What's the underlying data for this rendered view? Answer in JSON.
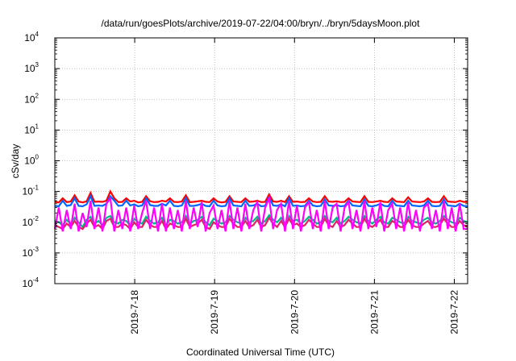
{
  "title": "/data/run/goesPlots/archive/2019-07-22/04:00/bryn/../bryn/5daysMoon.plot",
  "chart_data": {
    "type": "line",
    "title": "/data/run/goesPlots/archive/2019-07-22/04:00/bryn/../bryn/5daysMoon.plot",
    "xlabel": "Coordinated Universal Time (UTC)",
    "ylabel": "cSv/day",
    "yscale": "log",
    "ylim": [
      0.0001,
      10000
    ],
    "xlim": [
      "2019-07-17 00:00",
      "2019-07-22 04:00"
    ],
    "grid": true,
    "legend": "none",
    "y_ticks": [
      {
        "base": "10",
        "exp": "-4"
      },
      {
        "base": "10",
        "exp": "-3"
      },
      {
        "base": "10",
        "exp": "-2"
      },
      {
        "base": "10",
        "exp": "-1"
      },
      {
        "base": "10",
        "exp": "0"
      },
      {
        "base": "10",
        "exp": "1"
      },
      {
        "base": "10",
        "exp": "2"
      },
      {
        "base": "10",
        "exp": "3"
      },
      {
        "base": "10",
        "exp": "4"
      }
    ],
    "x_ticks": [
      "2019-7-18",
      "2019-7-19",
      "2019-7-20",
      "2019-7-21",
      "2019-7-22"
    ],
    "series": [
      {
        "color": "#ff0000",
        "values": [
          0.046,
          0.044,
          0.06,
          0.045,
          0.047,
          0.075,
          0.047,
          0.044,
          0.048,
          0.09,
          0.046,
          0.047,
          0.046,
          0.05,
          0.1,
          0.06,
          0.045,
          0.046,
          0.06,
          0.047,
          0.05,
          0.044,
          0.046,
          0.07,
          0.048,
          0.045,
          0.046,
          0.05,
          0.047,
          0.06,
          0.046,
          0.045,
          0.047,
          0.075,
          0.045,
          0.046,
          0.048,
          0.05,
          0.046,
          0.045,
          0.06,
          0.047,
          0.044,
          0.046,
          0.07,
          0.047,
          0.046,
          0.045,
          0.06,
          0.046,
          0.047,
          0.05,
          0.045,
          0.046,
          0.08,
          0.047,
          0.046,
          0.05,
          0.045,
          0.07,
          0.046,
          0.047,
          0.045,
          0.046,
          0.06,
          0.047,
          0.045,
          0.046,
          0.07,
          0.047,
          0.046,
          0.048,
          0.045,
          0.046,
          0.06,
          0.047,
          0.046,
          0.045,
          0.07,
          0.046,
          0.045,
          0.047,
          0.05,
          0.046,
          0.045,
          0.06,
          0.047,
          0.046,
          0.045,
          0.065,
          0.047,
          0.046,
          0.045,
          0.047,
          0.06,
          0.046,
          0.045,
          0.046,
          0.07,
          0.047,
          0.046,
          0.045,
          0.05,
          0.046,
          0.045
        ]
      },
      {
        "color": "#0066ff",
        "values": [
          0.034,
          0.033,
          0.05,
          0.034,
          0.036,
          0.06,
          0.034,
          0.033,
          0.038,
          0.07,
          0.034,
          0.035,
          0.034,
          0.04,
          0.07,
          0.05,
          0.034,
          0.035,
          0.05,
          0.035,
          0.038,
          0.033,
          0.035,
          0.06,
          0.036,
          0.034,
          0.034,
          0.04,
          0.035,
          0.05,
          0.034,
          0.033,
          0.035,
          0.06,
          0.034,
          0.034,
          0.036,
          0.04,
          0.034,
          0.033,
          0.05,
          0.035,
          0.033,
          0.034,
          0.06,
          0.035,
          0.034,
          0.033,
          0.05,
          0.034,
          0.035,
          0.04,
          0.033,
          0.034,
          0.065,
          0.035,
          0.034,
          0.038,
          0.033,
          0.06,
          0.034,
          0.035,
          0.033,
          0.034,
          0.05,
          0.035,
          0.033,
          0.034,
          0.055,
          0.035,
          0.034,
          0.036,
          0.033,
          0.034,
          0.05,
          0.035,
          0.034,
          0.033,
          0.055,
          0.034,
          0.033,
          0.035,
          0.04,
          0.034,
          0.033,
          0.05,
          0.035,
          0.034,
          0.033,
          0.05,
          0.035,
          0.034,
          0.033,
          0.035,
          0.05,
          0.034,
          0.033,
          0.034,
          0.055,
          0.035,
          0.034,
          0.033,
          0.04,
          0.034,
          0.033
        ]
      },
      {
        "color": "#00bb88",
        "values": [
          0.011,
          0.01,
          0.008,
          0.012,
          0.009,
          0.014,
          0.01,
          0.007,
          0.012,
          0.015,
          0.009,
          0.011,
          0.008,
          0.014,
          0.016,
          0.01,
          0.009,
          0.012,
          0.011,
          0.008,
          0.013,
          0.01,
          0.009,
          0.015,
          0.011,
          0.009,
          0.01,
          0.014,
          0.008,
          0.012,
          0.011,
          0.009,
          0.01,
          0.016,
          0.009,
          0.011,
          0.012,
          0.015,
          0.01,
          0.008,
          0.013,
          0.011,
          0.009,
          0.01,
          0.016,
          0.012,
          0.01,
          0.009,
          0.014,
          0.01,
          0.011,
          0.015,
          0.009,
          0.011,
          0.017,
          0.012,
          0.01,
          0.014,
          0.009,
          0.016,
          0.011,
          0.012,
          0.009,
          0.011,
          0.015,
          0.012,
          0.009,
          0.01,
          0.016,
          0.011,
          0.01,
          0.014,
          0.009,
          0.011,
          0.015,
          0.012,
          0.01,
          0.009,
          0.016,
          0.011,
          0.009,
          0.012,
          0.015,
          0.01,
          0.009,
          0.014,
          0.012,
          0.01,
          0.009,
          0.015,
          0.011,
          0.01,
          0.009,
          0.012,
          0.014,
          0.01,
          0.009,
          0.011,
          0.016,
          0.012,
          0.01,
          0.009,
          0.014,
          0.011,
          0.01
        ]
      },
      {
        "color": "#dd2266",
        "values": [
          0.008,
          0.007,
          0.006,
          0.009,
          0.007,
          0.011,
          0.007,
          0.006,
          0.009,
          0.012,
          0.007,
          0.008,
          0.006,
          0.011,
          0.013,
          0.007,
          0.007,
          0.009,
          0.008,
          0.006,
          0.01,
          0.007,
          0.007,
          0.012,
          0.008,
          0.007,
          0.007,
          0.011,
          0.006,
          0.009,
          0.008,
          0.007,
          0.007,
          0.013,
          0.007,
          0.008,
          0.009,
          0.012,
          0.007,
          0.006,
          0.01,
          0.008,
          0.007,
          0.007,
          0.013,
          0.009,
          0.007,
          0.007,
          0.011,
          0.007,
          0.008,
          0.012,
          0.007,
          0.008,
          0.014,
          0.009,
          0.007,
          0.011,
          0.007,
          0.013,
          0.008,
          0.009,
          0.007,
          0.008,
          0.012,
          0.009,
          0.007,
          0.007,
          0.013,
          0.008,
          0.007,
          0.011,
          0.007,
          0.008,
          0.012,
          0.009,
          0.007,
          0.007,
          0.013,
          0.008,
          0.007,
          0.009,
          0.012,
          0.007,
          0.007,
          0.011,
          0.009,
          0.007,
          0.007,
          0.012,
          0.008,
          0.007,
          0.007,
          0.009,
          0.011,
          0.007,
          0.007,
          0.008,
          0.013,
          0.009,
          0.007,
          0.007,
          0.011,
          0.008,
          0.007
        ]
      },
      {
        "color": "#ff00ff",
        "values": [
          0.006,
          0.03,
          0.005,
          0.025,
          0.006,
          0.04,
          0.005,
          0.02,
          0.007,
          0.05,
          0.006,
          0.03,
          0.005,
          0.04,
          0.06,
          0.005,
          0.025,
          0.006,
          0.03,
          0.005,
          0.035,
          0.006,
          0.02,
          0.05,
          0.006,
          0.03,
          0.005,
          0.04,
          0.005,
          0.03,
          0.006,
          0.025,
          0.005,
          0.05,
          0.006,
          0.03,
          0.007,
          0.045,
          0.005,
          0.02,
          0.035,
          0.006,
          0.025,
          0.005,
          0.05,
          0.006,
          0.03,
          0.005,
          0.04,
          0.006,
          0.025,
          0.045,
          0.005,
          0.03,
          0.06,
          0.006,
          0.025,
          0.04,
          0.005,
          0.05,
          0.006,
          0.035,
          0.005,
          0.03,
          0.045,
          0.006,
          0.025,
          0.005,
          0.05,
          0.006,
          0.03,
          0.04,
          0.005,
          0.03,
          0.045,
          0.006,
          0.025,
          0.005,
          0.05,
          0.006,
          0.03,
          0.007,
          0.045,
          0.005,
          0.025,
          0.04,
          0.006,
          0.03,
          0.005,
          0.045,
          0.006,
          0.025,
          0.005,
          0.03,
          0.04,
          0.006,
          0.025,
          0.005,
          0.05,
          0.006,
          0.03,
          0.005,
          0.04,
          0.006,
          0.006
        ]
      }
    ]
  }
}
